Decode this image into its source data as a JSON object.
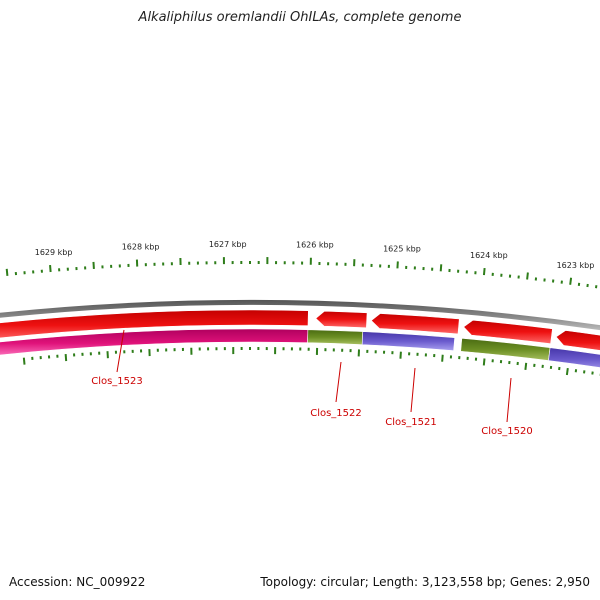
{
  "title": "Alkaliphilus oremlandii OhILAs, complete genome",
  "accession_text": "Accession: NC_009922",
  "summary_text": "Topology: circular; Length: 3,123,558 bp; Genes: 2,950",
  "colors": {
    "backbone": "#8a8a8a",
    "forward_cds": "#ee1111",
    "reverse_magenta": "#e0127a",
    "reverse_olive": "#6b8e23",
    "reverse_purple": "#6a5acd",
    "tick": "#2e7d1a",
    "label": "#cc0000"
  },
  "scale_labels": [
    "1629 kbp",
    "1628 kbp",
    "1627 kbp",
    "1626 kbp",
    "1625 kbp",
    "1624 kbp",
    "1623 kbp"
  ],
  "genes": [
    {
      "name": "Clos_1523",
      "color": "reverse_magenta"
    },
    {
      "name": "Clos_1522",
      "color": "reverse_olive"
    },
    {
      "name": "Clos_1521",
      "color": "reverse_purple"
    },
    {
      "name": "Clos_1520",
      "color": "reverse_olive"
    }
  ]
}
